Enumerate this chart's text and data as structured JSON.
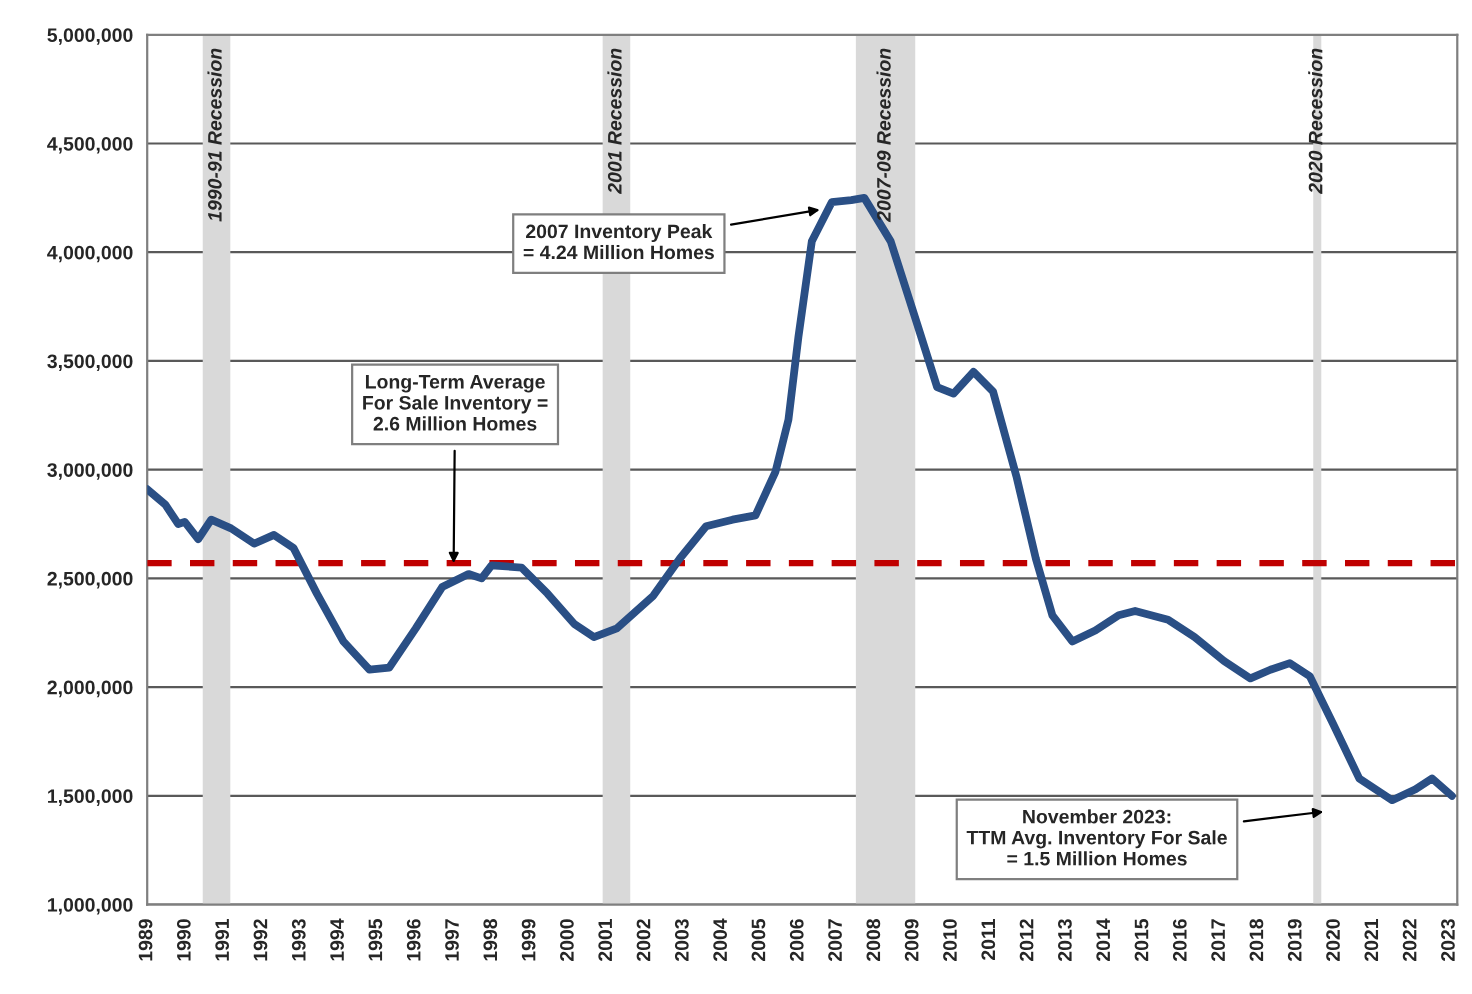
{
  "chart_data": {
    "type": "line",
    "x": [
      1989.0,
      1989.47,
      1989.81,
      1989.98,
      1990.33,
      1990.67,
      1991.19,
      1991.79,
      1992.31,
      1992.82,
      1993.43,
      1994.12,
      1994.8,
      1995.32,
      1996.01,
      1996.7,
      1997.39,
      1997.73,
      1997.99,
      1998.77,
      1999.45,
      2000.15,
      2000.66,
      2001.26,
      2002.21,
      2002.9,
      2003.59,
      2004.28,
      2004.88,
      2005.4,
      2005.74,
      2006.0,
      2006.35,
      2006.87,
      2007.38,
      2007.72,
      2008.41,
      2009.1,
      2009.62,
      2010.05,
      2010.57,
      2011.08,
      2011.69,
      2012.2,
      2012.63,
      2013.15,
      2013.75,
      2014.36,
      2014.79,
      2015.65,
      2016.34,
      2017.11,
      2017.8,
      2018.32,
      2018.83,
      2019.35,
      2019.96,
      2020.64,
      2021.5,
      2022.11,
      2022.54,
      2023.06
    ],
    "series": [
      {
        "color": "#2a4f85",
        "values": [
          2910000,
          2840000,
          2750000,
          2760000,
          2680000,
          2770000,
          2730000,
          2660000,
          2700000,
          2640000,
          2430000,
          2210000,
          2080000,
          2090000,
          2270000,
          2460000,
          2520000,
          2500000,
          2560000,
          2550000,
          2430000,
          2290000,
          2230000,
          2270000,
          2420000,
          2590000,
          2740000,
          2770000,
          2790000,
          2990000,
          3230000,
          3610000,
          4050000,
          4230000,
          4240000,
          4250000,
          4050000,
          3670000,
          3380000,
          3350000,
          3450000,
          3360000,
          2970000,
          2590000,
          2330000,
          2210000,
          2260000,
          2330000,
          2350000,
          2310000,
          2230000,
          2120000,
          2040000,
          2080000,
          2110000,
          2050000,
          1830000,
          1580000,
          1480000,
          1530000,
          1580000,
          1500000
        ]
      }
    ],
    "xlim": [
      1989,
      2023.2
    ],
    "xticks": [
      1989,
      1990,
      1991,
      1992,
      1993,
      1994,
      1995,
      1996,
      1997,
      1998,
      1999,
      2000,
      2001,
      2002,
      2003,
      2004,
      2005,
      2006,
      2007,
      2008,
      2009,
      2010,
      2011,
      2012,
      2013,
      2014,
      2015,
      2016,
      2017,
      2018,
      2019,
      2020,
      2021,
      2022,
      2023
    ],
    "ylim": [
      1000000,
      5000000
    ],
    "yticks": [
      {
        "value": 1000000,
        "label": "1,000,000"
      },
      {
        "value": 1500000,
        "label": "1,500,000"
      },
      {
        "value": 2000000,
        "label": "2,000,000"
      },
      {
        "value": 2500000,
        "label": "2,500,000"
      },
      {
        "value": 3000000,
        "label": "3,000,000"
      },
      {
        "value": 3500000,
        "label": "3,500,000"
      },
      {
        "value": 4000000,
        "label": "4,000,000"
      },
      {
        "value": 4500000,
        "label": "4,500,000"
      },
      {
        "value": 5000000,
        "label": "5,000,000"
      }
    ],
    "grid": "y",
    "ref_lines": [
      {
        "axis": "y",
        "value": 2570000,
        "color": "#c00000",
        "line_style": "dashed"
      }
    ],
    "bands": [
      {
        "axis": "x",
        "from": 1990.45,
        "to": 1991.17,
        "label": "1990-91 Recession",
        "color": "#d9d9d9"
      },
      {
        "axis": "x",
        "from": 2000.89,
        "to": 2001.61,
        "label": "2001 Recession",
        "color": "#d9d9d9"
      },
      {
        "axis": "x",
        "from": 2007.5,
        "to": 2009.05,
        "label": "2007-09 Recession",
        "color": "#d9d9d9"
      },
      {
        "axis": "x",
        "from": 2019.44,
        "to": 2019.65,
        "label": "2020 Recession",
        "color": "#d9d9d9"
      }
    ],
    "annotations": [
      {
        "text": "2007 Inventory Peak\n= 4.24 Million Homes",
        "x": 2006.7,
        "y": 4200000
      },
      {
        "text": "Long-Term Average\nFor Sale Inventory =\n2.6 Million Homes",
        "x": 1997.0,
        "y": 2570000
      },
      {
        "text": "November 2023:\nTTM Avg. Inventory For Sale\n= 1.5 Million Homes",
        "x": 2019.85,
        "y": 1430000
      }
    ]
  }
}
